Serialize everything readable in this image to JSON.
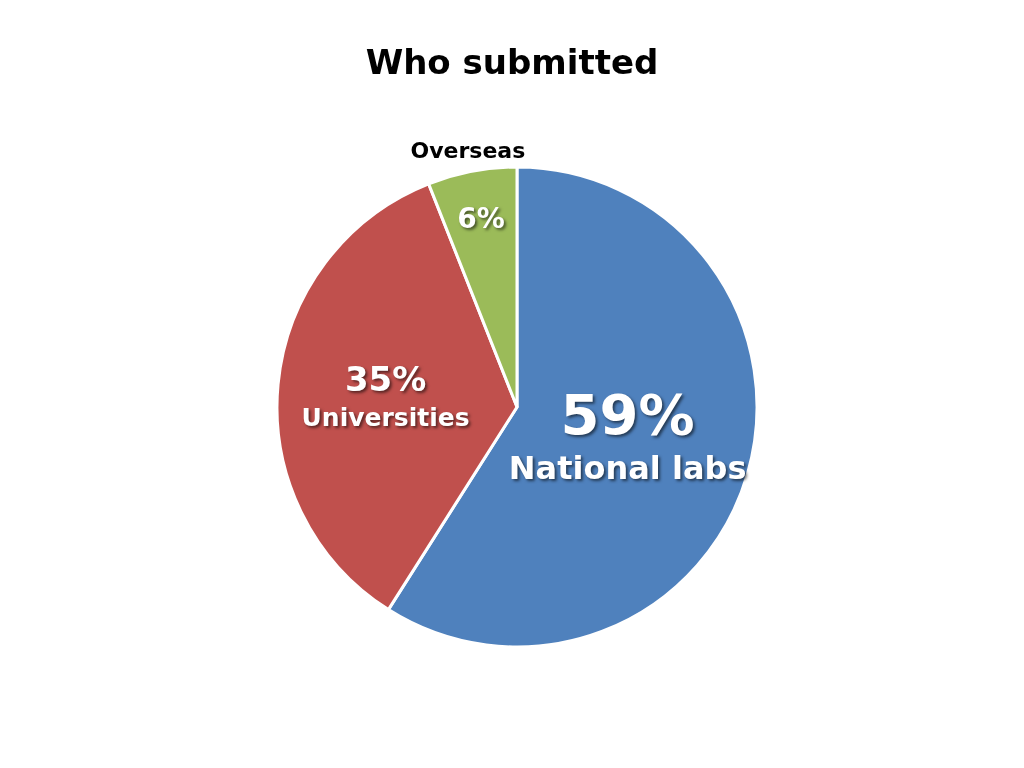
{
  "chart_data": {
    "type": "pie",
    "title": "Who submitted",
    "categories": [
      "National labs",
      "Universities",
      "Overseas"
    ],
    "values": [
      59,
      35,
      6
    ],
    "value_labels": [
      "59%",
      "35%",
      "6%"
    ],
    "colors": [
      "#4f81bd",
      "#c0504d",
      "#9bbb59"
    ]
  }
}
